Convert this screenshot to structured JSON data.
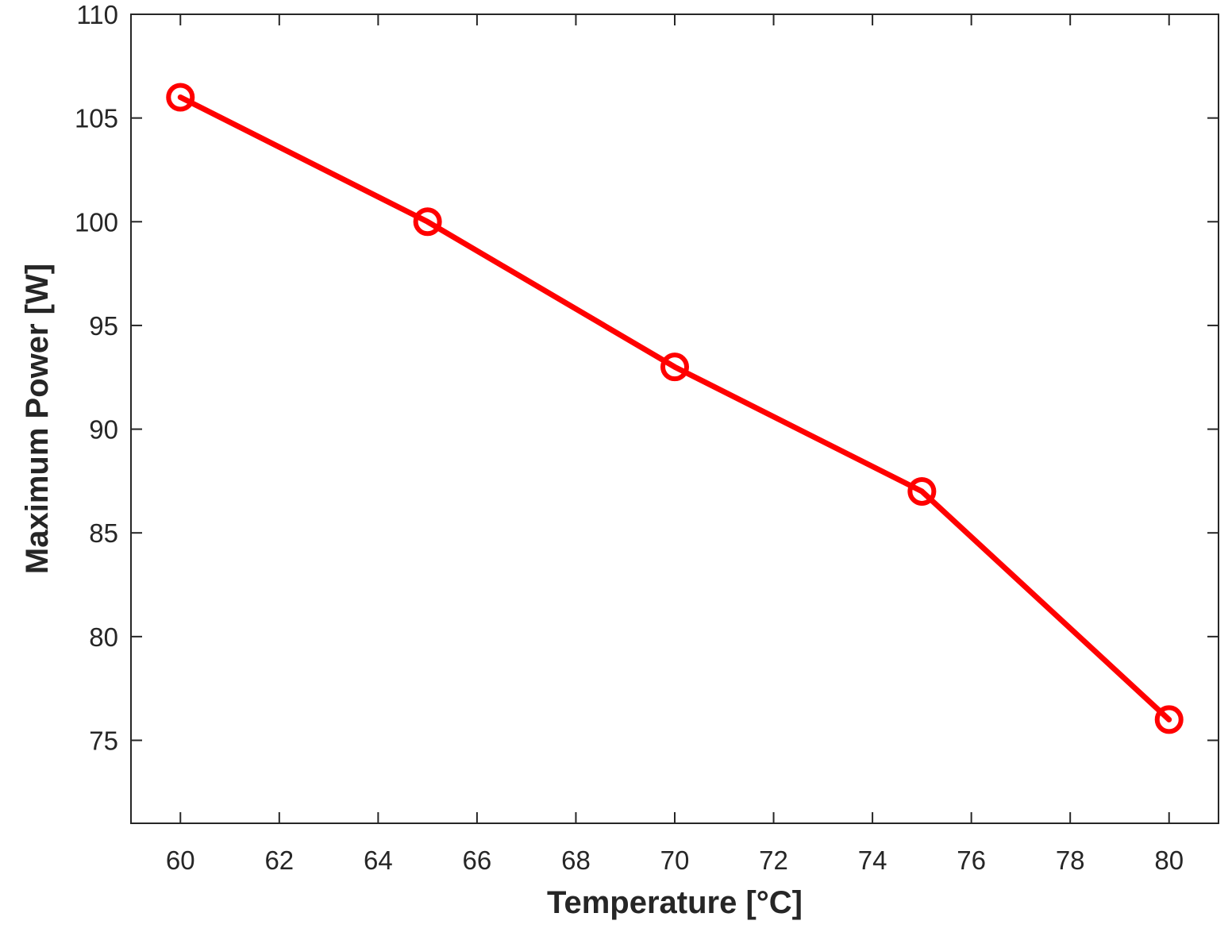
{
  "chart_data": {
    "type": "line",
    "title": "",
    "xlabel": "Temperature [°C]",
    "ylabel": "Maximum Power [W]",
    "xlim": [
      59,
      81
    ],
    "ylim": [
      71,
      110
    ],
    "xticks": [
      60,
      62,
      64,
      66,
      68,
      70,
      72,
      74,
      76,
      78,
      80
    ],
    "yticks": [
      75,
      80,
      85,
      90,
      95,
      100,
      105,
      110
    ],
    "grid": false,
    "series": [
      {
        "x": [
          60,
          65,
          70,
          75,
          80
        ],
        "values": [
          106,
          100,
          93,
          87,
          76
        ],
        "color": "#ff0000",
        "marker": "circle"
      }
    ]
  },
  "colors": {
    "series": "#ff0000",
    "axis": "#262626",
    "background": "#ffffff"
  }
}
